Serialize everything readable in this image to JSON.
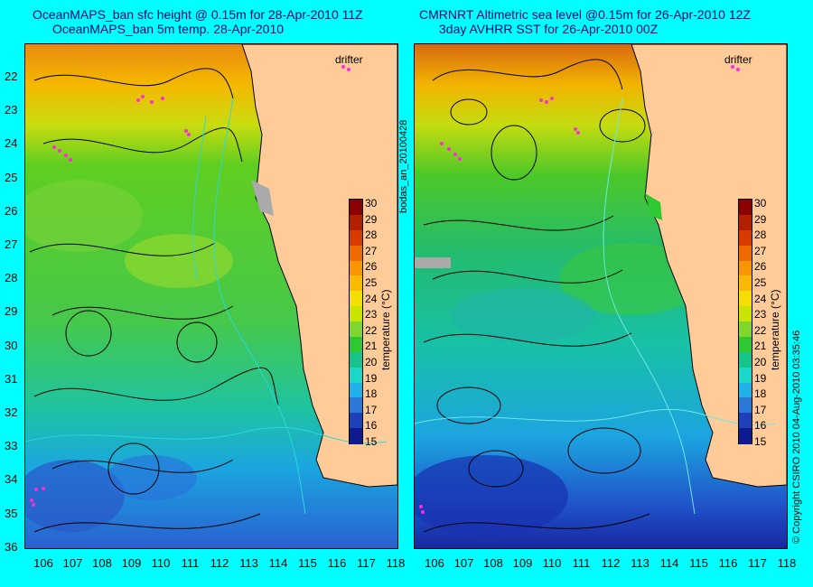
{
  "left_panel": {
    "title_line1": "OceanMAPS_ban sfc height @ 0.15m for 28-Apr-2010 11Z",
    "title_line2": "OceanMAPS_ban 5m temp. 28-Apr-2010",
    "drifter_label": "drifter"
  },
  "right_panel": {
    "title_line1": "CMRNRT Altimetric sea level  @0.15m  for 26-Apr-2010 12Z",
    "title_line2": "3day AVHRR SST for 26-Apr-2010 00Z",
    "drifter_label": "drifter"
  },
  "latitudes": [
    "22",
    "23",
    "24",
    "25",
    "26",
    "27",
    "28",
    "29",
    "30",
    "31",
    "32",
    "33",
    "34",
    "35",
    "36"
  ],
  "longitudes": [
    "106",
    "107",
    "108",
    "109",
    "110",
    "111",
    "112",
    "113",
    "114",
    "115",
    "116",
    "117",
    "118"
  ],
  "colorbar": {
    "ticks": [
      "30",
      "29",
      "28",
      "27",
      "26",
      "25",
      "24",
      "23",
      "22",
      "21",
      "20",
      "19",
      "18",
      "17",
      "16",
      "15"
    ],
    "label": "temperature (°C)",
    "colors": [
      "#8b0000",
      "#b22000",
      "#d83a00",
      "#ee6a00",
      "#f79400",
      "#fbb800",
      "#f3de00",
      "#c8e400",
      "#7fd62e",
      "#2ec832",
      "#18c38a",
      "#1ad7c8",
      "#22b0e8",
      "#2a78d8",
      "#1e40b8",
      "#101a90"
    ]
  },
  "side_labels": {
    "left": "bodas_an_20100428",
    "right": "© Copyright CSIRO 2010   04-Aug-2010 03:35:46"
  },
  "colors": {
    "background": "#00ffff",
    "land": "#ffcc99",
    "title": "#00007a"
  }
}
